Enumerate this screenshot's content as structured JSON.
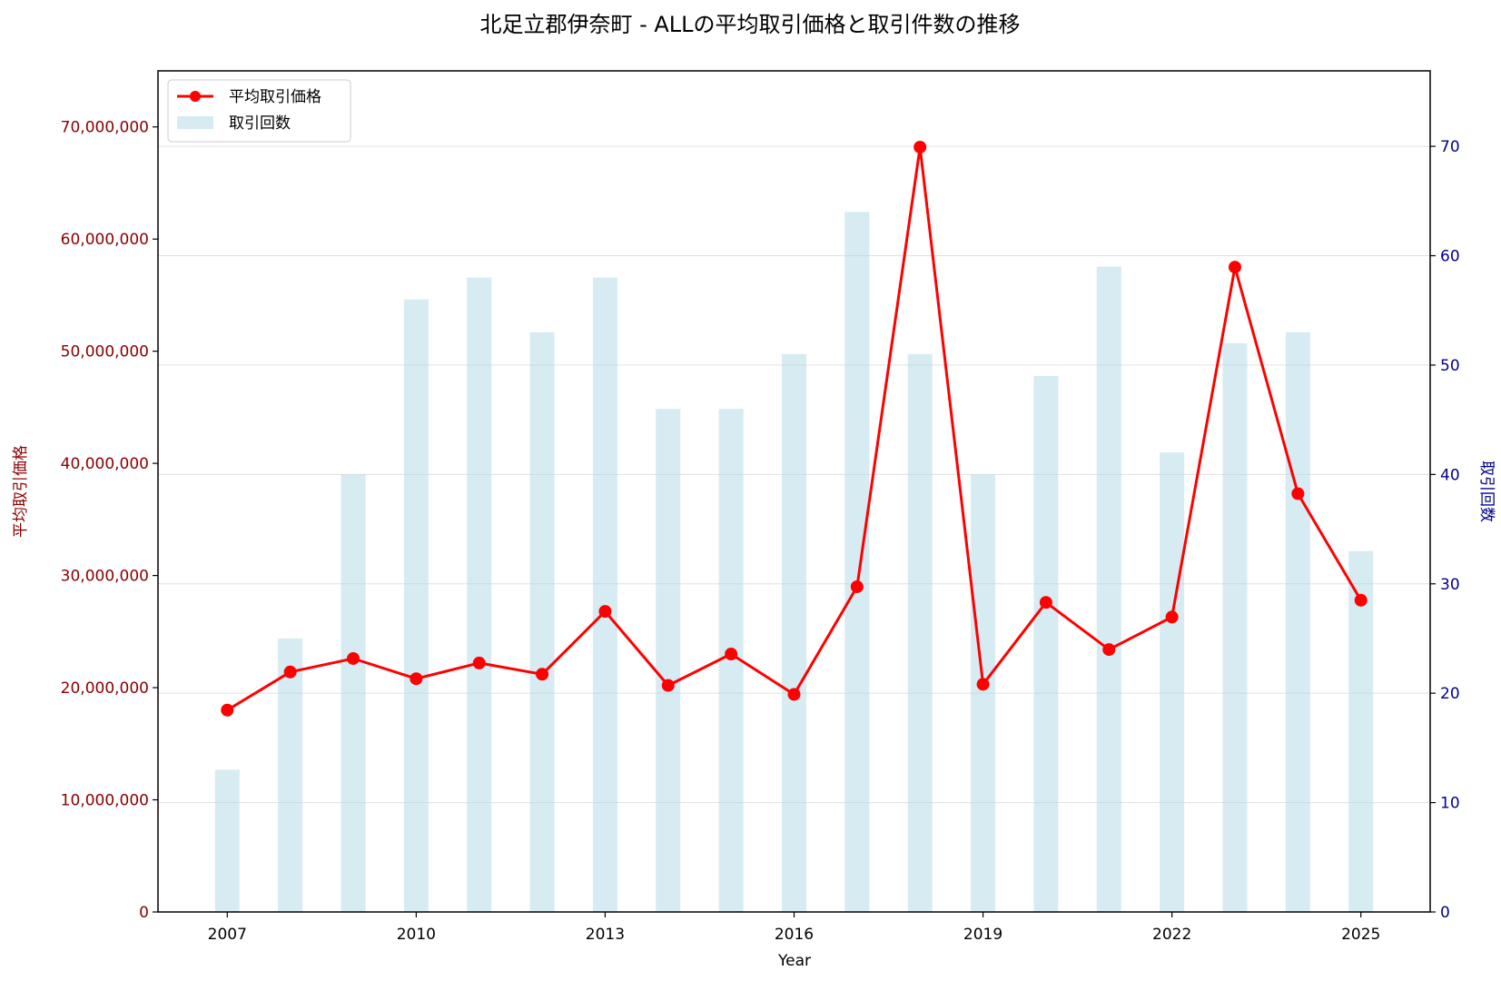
{
  "chart_data": {
    "type": "bar+line",
    "title": "北足立郡伊奈町 - ALLの平均取引価格と取引件数の推移",
    "xlabel": "Year",
    "ylabel_left": "平均取引価格",
    "ylabel_right": "取引回数",
    "x": [
      2007,
      2008,
      2009,
      2010,
      2011,
      2012,
      2013,
      2014,
      2015,
      2016,
      2017,
      2018,
      2019,
      2020,
      2021,
      2022,
      2023,
      2024,
      2025
    ],
    "x_ticks": [
      "2007",
      "2010",
      "2013",
      "2016",
      "2019",
      "2022",
      "2025"
    ],
    "xlim": [
      2005.9,
      2026.1
    ],
    "ylim_left": [
      0,
      75000000
    ],
    "ylim_right": [
      0,
      76.9
    ],
    "left_ticks": [
      "0",
      "10,000,000",
      "20,000,000",
      "30,000,000",
      "40,000,000",
      "50,000,000",
      "60,000,000",
      "70,000,000"
    ],
    "right_ticks": [
      "0",
      "10",
      "20",
      "30",
      "40",
      "50",
      "60",
      "70"
    ],
    "grid": true,
    "legend_position": "top-left",
    "series": [
      {
        "name": "平均取引価格",
        "type": "line",
        "axis": "left",
        "color": "#ff0000",
        "values": [
          18000000,
          21400000,
          22600000,
          20800000,
          22200000,
          21200000,
          26800000,
          20200000,
          23000000,
          19400000,
          29000000,
          68200000,
          20300000,
          27600000,
          23400000,
          26300000,
          57500000,
          37300000,
          27800000
        ]
      },
      {
        "name": "取引回数",
        "type": "bar",
        "axis": "right",
        "color": "#add8e6",
        "values": [
          13,
          25,
          40,
          56,
          58,
          53,
          58,
          46,
          46,
          51,
          64,
          51,
          40,
          49,
          59,
          42,
          52,
          53,
          33
        ]
      }
    ]
  },
  "colors": {
    "left_axis": "#8b0000",
    "right_axis": "#00008b",
    "line": "#ff0000",
    "bar": "#add8e6"
  }
}
